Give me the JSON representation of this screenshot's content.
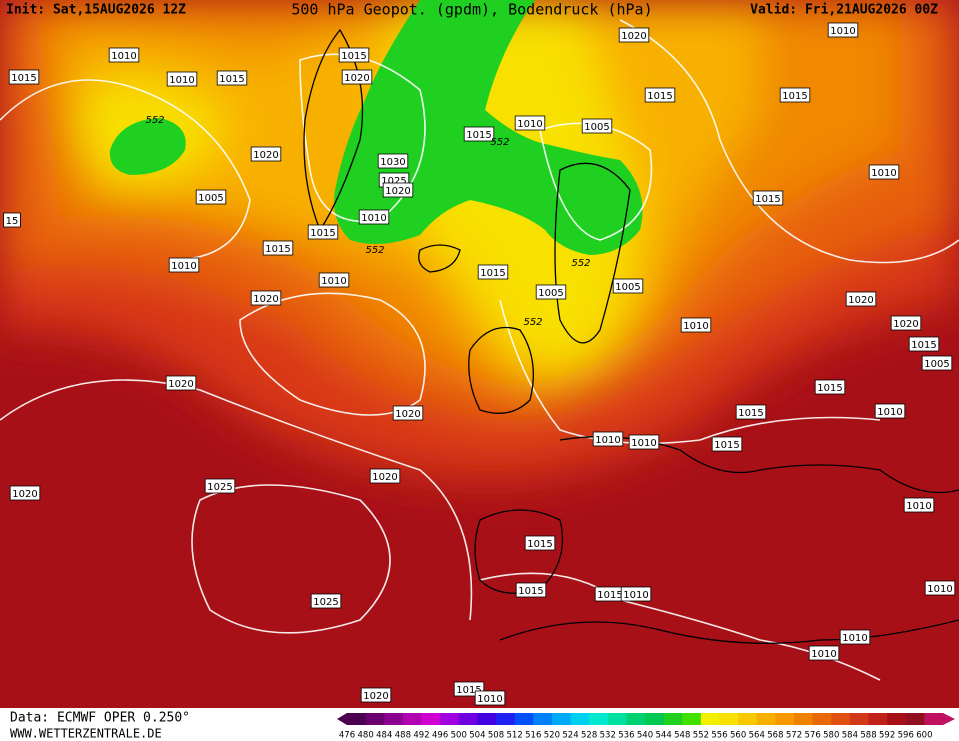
{
  "header": {
    "init": "Init: Sat,15AUG2026 12Z",
    "title": "500 hPa Geopot. (gpdm), Bodendruck (hPa)",
    "valid": "Valid: Fri,21AUG2026 00Z"
  },
  "footer": {
    "source": "Data: ECMWF OPER 0.250°",
    "website": "WWW.WETTERZENTRALE.DE"
  },
  "isobar_labels": [
    "1010",
    "1015",
    "1020",
    "1010",
    "1015",
    "1010",
    "1015",
    "1020",
    "1015",
    "1015",
    "1010",
    "1005",
    "1015",
    "1020",
    "1030",
    "1025",
    "1020",
    "1005",
    "1010",
    "1015",
    "1015",
    "1010",
    "1015",
    "1010",
    "1015",
    "1010",
    "1005",
    "1005",
    "1020",
    "1020",
    "1010",
    "1020",
    "1015",
    "1005",
    "1020",
    "1015",
    "1015",
    "1010",
    "1020",
    "1010",
    "1010",
    "1015",
    "1020",
    "1025",
    "1020",
    "1010",
    "1015",
    "1015",
    "1015",
    "1010",
    "1025",
    "1010",
    "1010",
    "1020",
    "1015",
    "1010",
    "1010",
    "15"
  ],
  "contour_labels": [
    "552",
    "552",
    "552",
    "552",
    "552"
  ],
  "scale": {
    "values": [
      476,
      480,
      484,
      488,
      492,
      496,
      500,
      504,
      508,
      512,
      516,
      520,
      524,
      528,
      532,
      536,
      540,
      544,
      548,
      552,
      556,
      560,
      564,
      568,
      572,
      576,
      580,
      584,
      588,
      592,
      596,
      600
    ],
    "colors": [
      "#4b0050",
      "#6a0070",
      "#8a008f",
      "#b000b0",
      "#d000d0",
      "#a000e0",
      "#7000e0",
      "#4000e0",
      "#2020f0",
      "#0050f8",
      "#0080f8",
      "#00a8f8",
      "#00d0f0",
      "#00e8d0",
      "#00e0a0",
      "#00d070",
      "#00c850",
      "#20d020",
      "#40e000",
      "#f0f000",
      "#f8e000",
      "#f8c800",
      "#f8b000",
      "#f89800",
      "#f08000",
      "#e86808",
      "#e05010",
      "#d03818",
      "#c02018",
      "#a81018",
      "#901020",
      "#c01060"
    ]
  }
}
